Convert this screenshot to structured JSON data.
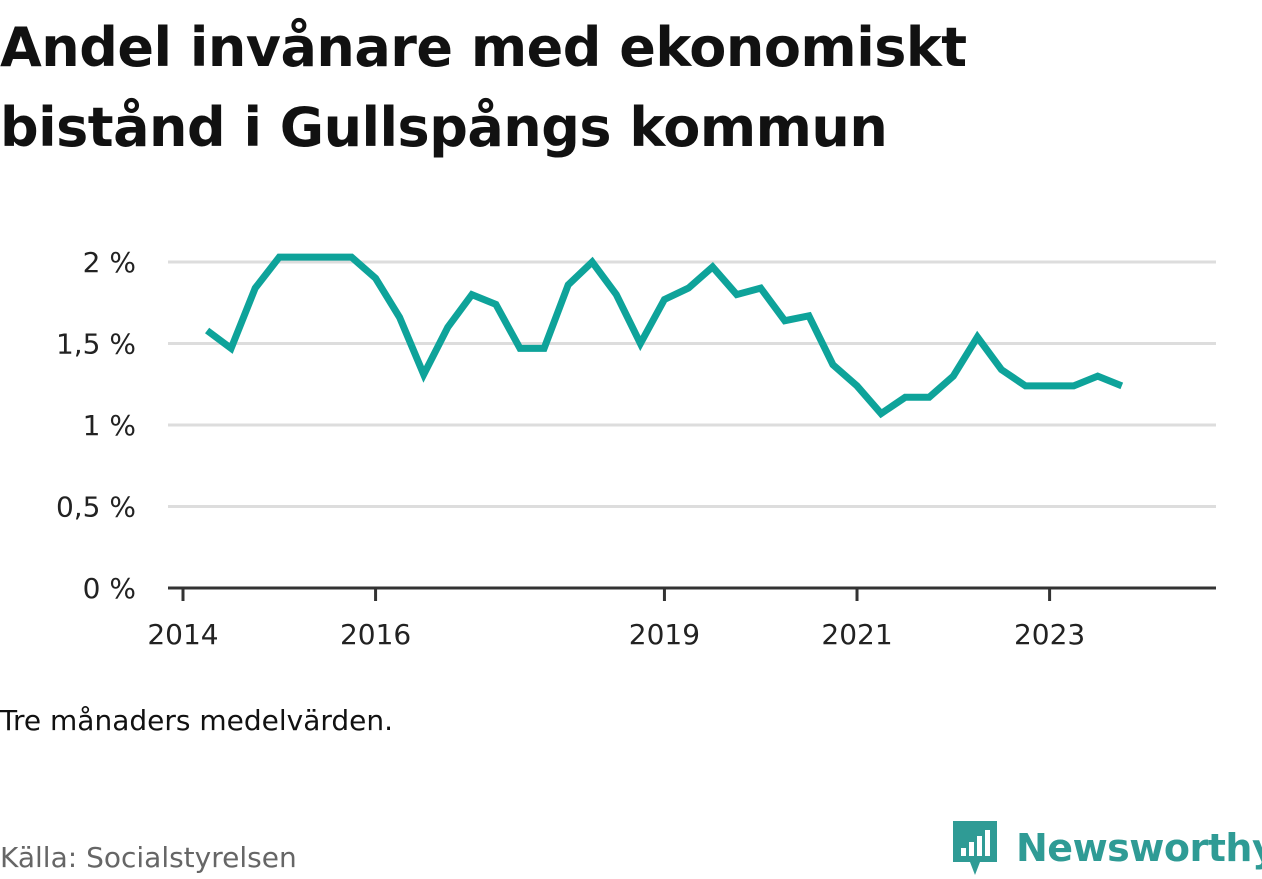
{
  "header": {
    "title_line1": "Andel invånare med ekonomiskt",
    "title_line2": "bistånd i Gullspångs kommun"
  },
  "footer": {
    "note": "Tre månaders medelvärden.",
    "source": "Källa: Socialstyrelsen",
    "brand": "Newsworthy",
    "brand_icon": "bar-chart-badge-icon"
  },
  "colors": {
    "line": "#0ea39a",
    "grid": "#dddddd",
    "axis": "#333333",
    "brand": "#2f9b95"
  },
  "chart_data": {
    "type": "line",
    "title": "Andel invånare med ekonomiskt bistånd i Gullspångs kommun",
    "xlabel": "",
    "ylabel": "",
    "ylim": [
      0,
      2
    ],
    "xlim": [
      "2014-01",
      "2024-06"
    ],
    "grid": true,
    "legend": "none",
    "y_ticks": [
      {
        "value": 0,
        "label": "0 %"
      },
      {
        "value": 0.5,
        "label": "0,5 %"
      },
      {
        "value": 1,
        "label": "1 %"
      },
      {
        "value": 1.5,
        "label": "1,5 %"
      },
      {
        "value": 2,
        "label": "2 %"
      }
    ],
    "x_ticks": [
      {
        "value": "2014-01",
        "label": "2014"
      },
      {
        "value": "2016-01",
        "label": "2016"
      },
      {
        "value": "2019-01",
        "label": "2019"
      },
      {
        "value": "2021-01",
        "label": "2021"
      },
      {
        "value": "2023-01",
        "label": "2023"
      }
    ],
    "series": [
      {
        "x": [
          "2014-04",
          "2014-07",
          "2014-10",
          "2015-01",
          "2015-04",
          "2015-07",
          "2015-10",
          "2016-01",
          "2016-04",
          "2016-07",
          "2016-10",
          "2017-01",
          "2017-04",
          "2017-07",
          "2017-10",
          "2018-01",
          "2018-04",
          "2018-07",
          "2018-10",
          "2019-01",
          "2019-04",
          "2019-07",
          "2019-10",
          "2020-01",
          "2020-04",
          "2020-07",
          "2020-10",
          "2021-01",
          "2021-04",
          "2021-07",
          "2021-10",
          "2022-01",
          "2022-04",
          "2022-07",
          "2022-10",
          "2023-01",
          "2023-04",
          "2023-07",
          "2023-10"
        ],
        "values": [
          1.58,
          1.47,
          1.84,
          2.03,
          2.03,
          2.03,
          2.03,
          1.9,
          1.66,
          1.31,
          1.6,
          1.8,
          1.74,
          1.47,
          1.47,
          1.86,
          2.0,
          1.8,
          1.5,
          1.77,
          1.84,
          1.97,
          1.8,
          1.84,
          1.64,
          1.67,
          1.37,
          1.24,
          1.07,
          1.17,
          1.17,
          1.3,
          1.54,
          1.34,
          1.24,
          1.24,
          1.24,
          1.3,
          1.24
        ]
      }
    ]
  }
}
